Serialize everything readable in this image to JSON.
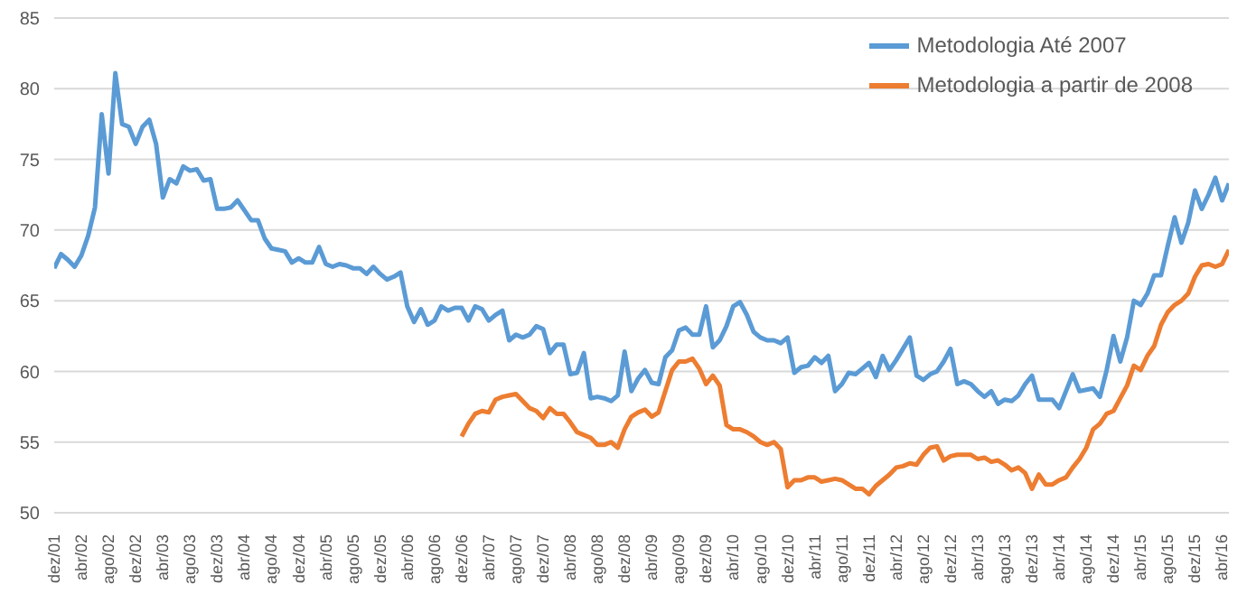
{
  "chart_data": {
    "type": "line",
    "categories": [
      "dez/01",
      null,
      null,
      null,
      "abr/02",
      null,
      null,
      null,
      "ago/02",
      null,
      null,
      null,
      "dez/02",
      null,
      null,
      null,
      "abr/03",
      null,
      null,
      null,
      "ago/03",
      null,
      null,
      null,
      "dez/03",
      null,
      null,
      null,
      "abr/04",
      null,
      null,
      null,
      "ago/04",
      null,
      null,
      null,
      "dez/04",
      null,
      null,
      null,
      "abr/05",
      null,
      null,
      null,
      "ago/05",
      null,
      null,
      null,
      "dez/05",
      null,
      null,
      null,
      "abr/06",
      null,
      null,
      null,
      "ago/06",
      null,
      null,
      null,
      "dez/06",
      null,
      null,
      null,
      "abr/07",
      null,
      null,
      null,
      "ago/07",
      null,
      null,
      null,
      "dez/07",
      null,
      null,
      null,
      "abr/08",
      null,
      null,
      null,
      "ago/08",
      null,
      null,
      null,
      "dez/08",
      null,
      null,
      null,
      "abr/09",
      null,
      null,
      null,
      "ago/09",
      null,
      null,
      null,
      "dez/09",
      null,
      null,
      null,
      "abr/10",
      null,
      null,
      null,
      "ago/10",
      null,
      null,
      null,
      "dez/10",
      null,
      null,
      null,
      "abr/11",
      null,
      null,
      null,
      "ago/11",
      null,
      null,
      null,
      "dez/11",
      null,
      null,
      null,
      "abr/12",
      null,
      null,
      null,
      "ago/12",
      null,
      null,
      null,
      "dez/12",
      null,
      null,
      null,
      "abr/13",
      null,
      null,
      null,
      "ago/13",
      null,
      null,
      null,
      "dez/13",
      null,
      null,
      null,
      "abr/14",
      null,
      null,
      null,
      "ago/14",
      null,
      null,
      null,
      "dez/14",
      null,
      null,
      null,
      "abr/15",
      null,
      null,
      null,
      "ago/15",
      null,
      null,
      null,
      "dez/15",
      null,
      null,
      null,
      "abr/16",
      null
    ],
    "series": [
      {
        "name": "Metodologia Até 2007",
        "color": "#5b9bd5",
        "values": [
          67.3,
          68.3,
          67.9,
          67.4,
          68.2,
          69.6,
          71.6,
          78.2,
          74.0,
          81.1,
          77.5,
          77.3,
          76.1,
          77.3,
          77.8,
          76.1,
          72.3,
          73.6,
          73.3,
          74.5,
          74.2,
          74.3,
          73.5,
          73.6,
          71.5,
          71.5,
          71.6,
          72.1,
          71.4,
          70.7,
          70.7,
          69.4,
          68.7,
          68.6,
          68.5,
          67.7,
          68.0,
          67.7,
          67.7,
          68.8,
          67.6,
          67.4,
          67.6,
          67.5,
          67.3,
          67.3,
          66.9,
          67.4,
          66.9,
          66.5,
          66.7,
          67.0,
          64.6,
          63.5,
          64.4,
          63.3,
          63.6,
          64.6,
          64.3,
          64.5,
          64.5,
          63.6,
          64.6,
          64.4,
          63.6,
          64.0,
          64.3,
          62.2,
          62.6,
          62.4,
          62.6,
          63.2,
          63.0,
          61.3,
          61.9,
          61.9,
          59.8,
          59.9,
          61.3,
          58.1,
          58.2,
          58.1,
          57.9,
          58.3,
          61.4,
          58.6,
          59.5,
          60.1,
          59.2,
          59.1,
          61.0,
          61.5,
          62.9,
          63.1,
          62.6,
          62.6,
          64.6,
          61.7,
          62.2,
          63.2,
          64.6,
          64.9,
          64.0,
          62.8,
          62.4,
          62.2,
          62.2,
          62.0,
          62.4,
          59.9,
          60.3,
          60.4,
          61.0,
          60.6,
          61.1,
          58.6,
          59.1,
          59.9,
          59.8,
          60.2,
          60.6,
          59.6,
          61.1,
          60.1,
          60.8,
          61.6,
          62.4,
          59.7,
          59.4,
          59.8,
          60.0,
          60.7,
          61.6,
          59.1,
          59.3,
          59.1,
          58.6,
          58.2,
          58.6,
          57.7,
          58.0,
          57.9,
          58.3,
          59.1,
          59.7,
          58.0,
          58.0,
          58.0,
          57.4,
          58.6,
          59.8,
          58.6,
          58.7,
          58.8,
          58.2,
          60.1,
          62.5,
          60.7,
          62.4,
          65.0,
          64.7,
          65.5,
          66.8,
          66.8,
          68.9,
          70.9,
          69.1,
          70.5,
          72.8,
          71.5,
          72.5,
          73.7,
          72.1,
          73.3
        ]
      },
      {
        "name": "Metodologia a partir de 2008",
        "color": "#ed7d31",
        "values": [
          null,
          null,
          null,
          null,
          null,
          null,
          null,
          null,
          null,
          null,
          null,
          null,
          null,
          null,
          null,
          null,
          null,
          null,
          null,
          null,
          null,
          null,
          null,
          null,
          null,
          null,
          null,
          null,
          null,
          null,
          null,
          null,
          null,
          null,
          null,
          null,
          null,
          null,
          null,
          null,
          null,
          null,
          null,
          null,
          null,
          null,
          null,
          null,
          null,
          null,
          null,
          null,
          null,
          null,
          null,
          null,
          null,
          null,
          null,
          null,
          55.4,
          56.3,
          57.0,
          57.2,
          57.1,
          58.0,
          58.2,
          58.3,
          58.4,
          57.9,
          57.4,
          57.2,
          56.7,
          57.4,
          57.0,
          57.0,
          56.4,
          55.7,
          55.5,
          55.3,
          54.8,
          54.8,
          55.0,
          54.6,
          55.9,
          56.8,
          57.1,
          57.3,
          56.8,
          57.1,
          58.6,
          60.1,
          60.7,
          60.7,
          60.9,
          60.2,
          59.1,
          59.7,
          59.0,
          56.2,
          55.9,
          55.9,
          55.7,
          55.4,
          55.0,
          54.8,
          55.0,
          54.5,
          51.8,
          52.3,
          52.3,
          52.5,
          52.5,
          52.2,
          52.3,
          52.4,
          52.3,
          52.0,
          51.7,
          51.7,
          51.3,
          51.9,
          52.3,
          52.7,
          53.2,
          53.3,
          53.5,
          53.4,
          54.1,
          54.6,
          54.7,
          53.7,
          54.0,
          54.1,
          54.1,
          54.1,
          53.8,
          53.9,
          53.6,
          53.7,
          53.4,
          53.0,
          53.2,
          52.8,
          51.7,
          52.7,
          52.0,
          52.0,
          52.3,
          52.5,
          53.2,
          53.8,
          54.6,
          55.9,
          56.3,
          57.0,
          57.2,
          58.1,
          59.0,
          60.4,
          60.1,
          61.1,
          61.8,
          63.3,
          64.2,
          64.7,
          65.0,
          65.5,
          66.7,
          67.5,
          67.6,
          67.4,
          67.6,
          68.6
        ]
      }
    ],
    "ylim": [
      50,
      85
    ],
    "yticks": [
      50,
      55,
      60,
      65,
      70,
      75,
      80,
      85
    ],
    "grid": "y",
    "legend": "top right"
  }
}
